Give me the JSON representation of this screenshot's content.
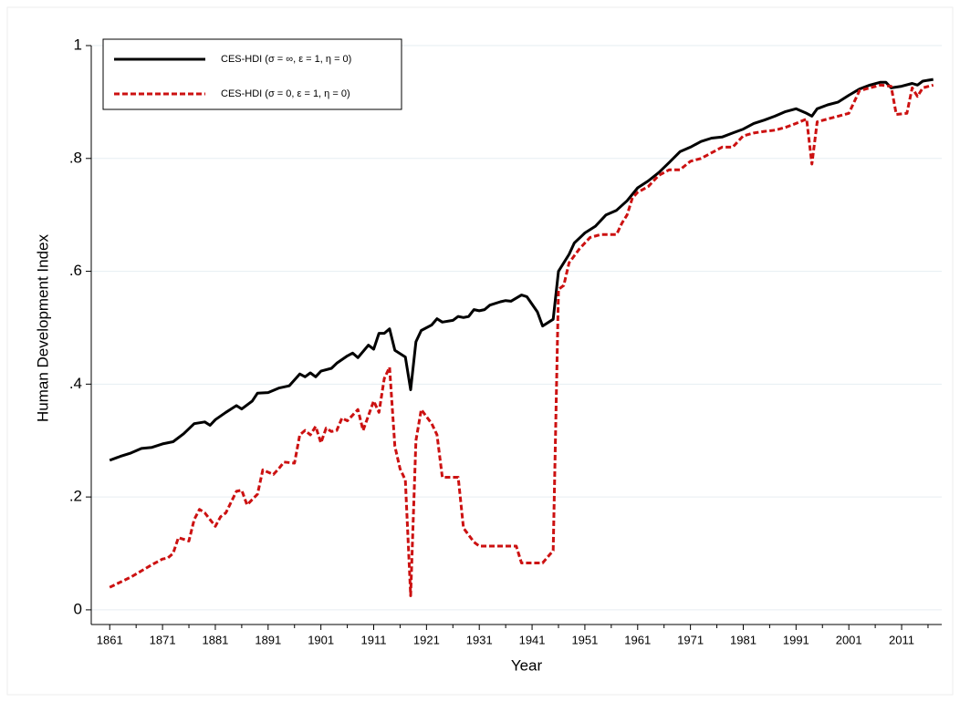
{
  "chart_data": {
    "type": "line",
    "xlabel": "Year",
    "ylabel": "Human Development Index",
    "xlim": [
      1857.5,
      2018.6
    ],
    "ylim": [
      -0.026,
      1
    ],
    "xticks": [
      1861,
      1871,
      1881,
      1891,
      1901,
      1911,
      1921,
      1931,
      1941,
      1951,
      1961,
      1971,
      1981,
      1991,
      2001,
      2011
    ],
    "xticks_minor": [
      1866,
      1876,
      1886,
      1896,
      1906,
      1916,
      1926,
      1936,
      1946,
      1956,
      1966,
      1976,
      1986,
      1996,
      2006,
      2016
    ],
    "yticks": [
      0,
      {
        "value": 0.2,
        "label": ".2"
      },
      {
        "value": 0.4,
        "label": ".4"
      },
      {
        "value": 0.6,
        "label": ".6"
      },
      {
        "value": 0.8,
        "label": ".8"
      },
      1
    ],
    "grid": true,
    "legend": "top-left",
    "series": [
      {
        "name": "CES-HDI (σ = ∞, ε = 1, η = 0)",
        "color": "#000000",
        "line_style": "solid",
        "x": [
          1861,
          1863,
          1865,
          1867,
          1869,
          1871,
          1873,
          1875,
          1877,
          1879,
          1880,
          1881,
          1883,
          1885,
          1886,
          1888,
          1889,
          1891,
          1893,
          1895,
          1897,
          1898,
          1899,
          1900,
          1901,
          1903,
          1904,
          1906,
          1907,
          1908,
          1910,
          1911,
          1912,
          1913,
          1914,
          1915,
          1917,
          1918,
          1919,
          1920,
          1922,
          1923,
          1924,
          1926,
          1927,
          1928,
          1929,
          1930,
          1931,
          1932,
          1933,
          1935,
          1936,
          1937,
          1939,
          1940,
          1942,
          1943,
          1945,
          1946,
          1948,
          1949,
          1951,
          1953,
          1955,
          1957,
          1959,
          1961,
          1963,
          1965,
          1967,
          1969,
          1971,
          1973,
          1975,
          1977,
          1979,
          1981,
          1983,
          1985,
          1987,
          1989,
          1991,
          1993,
          1994,
          1995,
          1997,
          1999,
          2001,
          2003,
          2005,
          2007,
          2008,
          2009,
          2011,
          2013,
          2014,
          2015,
          2017
        ],
        "values": [
          0.265,
          0.272,
          0.278,
          0.286,
          0.288,
          0.294,
          0.298,
          0.312,
          0.33,
          0.333,
          0.327,
          0.337,
          0.35,
          0.362,
          0.356,
          0.37,
          0.384,
          0.385,
          0.393,
          0.397,
          0.418,
          0.413,
          0.42,
          0.413,
          0.423,
          0.428,
          0.437,
          0.45,
          0.455,
          0.447,
          0.469,
          0.462,
          0.49,
          0.49,
          0.498,
          0.46,
          0.448,
          0.39,
          0.475,
          0.495,
          0.505,
          0.516,
          0.51,
          0.513,
          0.52,
          0.518,
          0.52,
          0.532,
          0.53,
          0.532,
          0.54,
          0.546,
          0.548,
          0.547,
          0.558,
          0.555,
          0.528,
          0.503,
          0.515,
          0.6,
          0.63,
          0.65,
          0.668,
          0.68,
          0.7,
          0.708,
          0.725,
          0.748,
          0.76,
          0.775,
          0.793,
          0.812,
          0.82,
          0.83,
          0.836,
          0.838,
          0.845,
          0.852,
          0.862,
          0.868,
          0.875,
          0.883,
          0.888,
          0.88,
          0.875,
          0.888,
          0.895,
          0.9,
          0.912,
          0.923,
          0.93,
          0.935,
          0.935,
          0.925,
          0.928,
          0.933,
          0.93,
          0.937,
          0.94
        ]
      },
      {
        "name": "CES-HDI (σ = 0, ε = 1, η = 0)",
        "color": "#cc1111",
        "line_style": "dashed",
        "x": [
          1861,
          1865,
          1869,
          1871,
          1872,
          1873,
          1874,
          1876,
          1877,
          1878,
          1879,
          1881,
          1882,
          1883,
          1885,
          1886,
          1887,
          1889,
          1890,
          1892,
          1893,
          1894,
          1896,
          1897,
          1898,
          1899,
          1900,
          1901,
          1902,
          1903,
          1904,
          1905,
          1906,
          1908,
          1909,
          1911,
          1912,
          1913,
          1914,
          1915,
          1916,
          1917,
          1918,
          1919,
          1920,
          1922,
          1923,
          1924,
          1927,
          1928,
          1930,
          1931,
          1938,
          1939,
          1943,
          1945,
          1946,
          1947,
          1948,
          1950,
          1952,
          1954,
          1957,
          1958,
          1959,
          1960,
          1961,
          1963,
          1965,
          1967,
          1969,
          1971,
          1973,
          1975,
          1977,
          1979,
          1981,
          1983,
          1985,
          1987,
          1989,
          1991,
          1993,
          1994,
          1995,
          1997,
          1999,
          2001,
          2003,
          2005,
          2007,
          2009,
          2010,
          2012,
          2013,
          2014,
          2015,
          2017
        ],
        "values": [
          0.04,
          0.058,
          0.08,
          0.09,
          0.092,
          0.1,
          0.128,
          0.122,
          0.16,
          0.178,
          0.172,
          0.148,
          0.165,
          0.172,
          0.21,
          0.212,
          0.186,
          0.205,
          0.248,
          0.24,
          0.25,
          0.262,
          0.26,
          0.31,
          0.318,
          0.31,
          0.325,
          0.296,
          0.322,
          0.316,
          0.318,
          0.34,
          0.335,
          0.355,
          0.318,
          0.37,
          0.35,
          0.41,
          0.43,
          0.29,
          0.25,
          0.23,
          0.025,
          0.3,
          0.355,
          0.33,
          0.31,
          0.235,
          0.235,
          0.145,
          0.12,
          0.113,
          0.113,
          0.083,
          0.083,
          0.105,
          0.568,
          0.575,
          0.615,
          0.64,
          0.66,
          0.665,
          0.665,
          0.685,
          0.7,
          0.73,
          0.74,
          0.75,
          0.77,
          0.78,
          0.78,
          0.795,
          0.8,
          0.81,
          0.82,
          0.82,
          0.84,
          0.845,
          0.848,
          0.85,
          0.855,
          0.862,
          0.87,
          0.79,
          0.865,
          0.87,
          0.875,
          0.88,
          0.92,
          0.925,
          0.93,
          0.928,
          0.878,
          0.88,
          0.925,
          0.91,
          0.925,
          0.93
        ]
      }
    ]
  }
}
